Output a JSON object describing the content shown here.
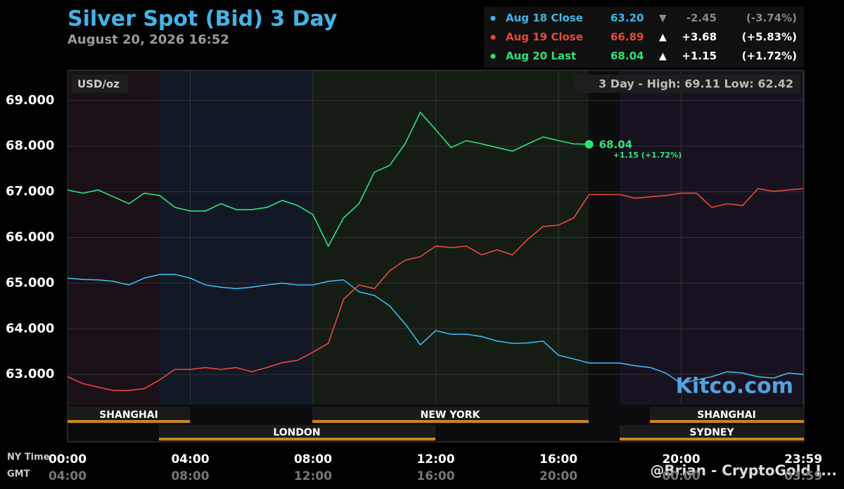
{
  "chart_data": {
    "type": "line",
    "title": "Silver Spot (Bid) 3 Day",
    "subtitle": "August 20, 2026 16:52",
    "unit_label": "USD/oz",
    "range_note": "3 Day - High: 69.11  Low: 62.42",
    "last_label": "68.04",
    "last_change_label": "+1.15 (+1.72%)",
    "watermark": "Kitco.com",
    "credit": "@Brian - CryptoGold I...",
    "x_axis_label": "NY Time",
    "x2_axis_label": "GMT",
    "sessions_top": [
      "SHANGHAI",
      "NEW YORK",
      "SHANGHAI"
    ],
    "sessions_bottom": [
      "LONDON",
      "SYDNEY"
    ],
    "x": [
      0,
      0.5,
      1,
      1.5,
      2,
      2.5,
      3,
      3.5,
      4,
      4.5,
      5,
      5.5,
      6,
      6.5,
      7,
      7.5,
      8,
      8.5,
      9,
      9.5,
      10,
      10.5,
      11,
      11.5,
      12,
      12.5,
      13,
      13.5,
      14,
      14.5,
      15,
      15.5,
      16,
      16.5,
      17,
      17.5,
      18,
      18.5,
      19,
      19.5,
      20,
      20.5,
      21,
      21.5,
      22,
      22.5,
      23,
      23.5,
      23.98
    ],
    "xlim": [
      0,
      24
    ],
    "xticks": [
      {
        "value": 0,
        "label": "00:00"
      },
      {
        "value": 4,
        "label": "04:00"
      },
      {
        "value": 8,
        "label": "08:00"
      },
      {
        "value": 12,
        "label": "12:00"
      },
      {
        "value": 16,
        "label": "16:00"
      },
      {
        "value": 20,
        "label": "20:00"
      },
      {
        "value": 23.98,
        "label": "23:59"
      }
    ],
    "x2_tick_labels": [
      "04:00",
      "08:00",
      "12:00",
      "16:00",
      "20:00",
      "00:00",
      "03:59"
    ],
    "ylim": [
      62.34,
      69.66
    ],
    "yticks": [
      {
        "value": 63,
        "label": "63.000"
      },
      {
        "value": 64,
        "label": "64.000"
      },
      {
        "value": 65,
        "label": "65.000"
      },
      {
        "value": 66,
        "label": "66.000"
      },
      {
        "value": 67,
        "label": "67.000"
      },
      {
        "value": 68,
        "label": "68.000"
      },
      {
        "value": 69,
        "label": "69.000"
      }
    ],
    "grid": true,
    "series": [
      {
        "name": "Aug 18 Close",
        "color": "#3fb6e8",
        "close": {
          "value": 63.2,
          "label": "63.20"
        },
        "change": -2.45,
        "change_pct": {
          "value": -3.74,
          "label": "(-3.74%)"
        },
        "values": [
          65.11,
          65.08,
          65.07,
          65.04,
          64.96,
          65.11,
          65.19,
          65.19,
          65.11,
          64.96,
          64.91,
          64.88,
          64.91,
          64.96,
          65.0,
          64.96,
          64.96,
          65.04,
          65.07,
          64.81,
          64.73,
          64.5,
          64.11,
          63.65,
          63.96,
          63.88,
          63.88,
          63.83,
          63.73,
          63.68,
          63.69,
          63.73,
          63.42,
          63.34,
          63.25,
          63.25,
          63.25,
          63.19,
          63.15,
          63.03,
          62.8,
          62.88,
          62.95,
          63.06,
          63.03,
          62.95,
          62.92,
          63.03,
          63.0
        ]
      },
      {
        "name": "Aug 19 Close",
        "color": "#e8483c",
        "close": {
          "value": 66.89,
          "label": "66.89"
        },
        "change": {
          "value": 3.68,
          "label": "+3.68"
        },
        "change_pct": {
          "value": 5.83,
          "label": "(+5.83%)"
        },
        "values": [
          62.95,
          62.8,
          62.72,
          62.65,
          62.65,
          62.69,
          62.88,
          63.11,
          63.11,
          63.15,
          63.11,
          63.15,
          63.06,
          63.15,
          63.26,
          63.31,
          63.49,
          63.68,
          64.65,
          64.96,
          64.88,
          65.27,
          65.5,
          65.58,
          65.81,
          65.78,
          65.81,
          65.62,
          65.73,
          65.62,
          65.96,
          66.24,
          66.27,
          66.43,
          66.94,
          66.94,
          66.94,
          66.86,
          66.89,
          66.92,
          66.97,
          66.97,
          66.66,
          66.74,
          66.7,
          67.07,
          67.01,
          67.04,
          67.07
        ]
      },
      {
        "name": "Aug 20 Last",
        "color": "#2ee27a",
        "close": {
          "value": 68.04,
          "label": "68.04"
        },
        "change": {
          "value": 1.15,
          "label": "+1.15"
        },
        "change_pct": {
          "value": 1.72,
          "label": "(+1.72%)"
        },
        "values": [
          67.04,
          66.97,
          67.04,
          66.89,
          66.74,
          66.97,
          66.92,
          66.66,
          66.58,
          66.58,
          66.74,
          66.61,
          66.61,
          66.66,
          66.81,
          66.7,
          66.5,
          65.81,
          66.43,
          66.74,
          67.43,
          67.58,
          68.05,
          68.74,
          68.36,
          67.97,
          68.12,
          68.05,
          67.97,
          67.89,
          68.05,
          68.2,
          68.12,
          68.05,
          68.04,
          null,
          null,
          null,
          null,
          null,
          null,
          null,
          null,
          null,
          null,
          null,
          null,
          null,
          null
        ]
      }
    ]
  }
}
